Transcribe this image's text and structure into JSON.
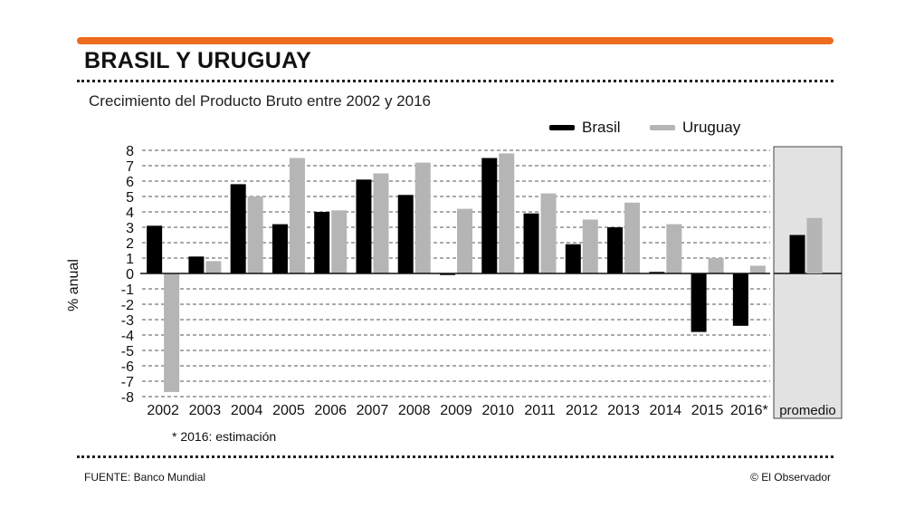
{
  "header": {
    "title": "BRASIL Y URUGUAY",
    "subtitle": "Crecimiento del Producto Bruto entre 2002 y 2016"
  },
  "legend": {
    "brasil": "Brasil",
    "uruguay": "Uruguay"
  },
  "footer": {
    "note": "*  2016: estimación",
    "source": "FUENTE:  Banco Mundial",
    "copyright": "© El Observador"
  },
  "colors": {
    "accent": "#ee6a1f",
    "brasil": "#000000",
    "uruguay": "#b5b5b5",
    "panel": "#e2e2e2"
  },
  "chart_data": {
    "type": "bar",
    "ylabel": "% anual",
    "ylim": [
      -8,
      8
    ],
    "yticks": [
      8,
      7,
      6,
      5,
      4,
      3,
      2,
      1,
      0,
      -1,
      -2,
      -3,
      -4,
      -5,
      -6,
      -7,
      -8
    ],
    "categories": [
      "2002",
      "2003",
      "2004",
      "2005",
      "2006",
      "2007",
      "2008",
      "2009",
      "2010",
      "2011",
      "2012",
      "2013",
      "2014",
      "2015",
      "2016*"
    ],
    "series": [
      {
        "name": "Brasil",
        "values": [
          3.1,
          1.1,
          5.8,
          3.2,
          4.0,
          6.1,
          5.1,
          -0.1,
          7.5,
          3.9,
          1.9,
          3.0,
          0.1,
          -3.8,
          -3.4
        ]
      },
      {
        "name": "Uruguay",
        "values": [
          -7.7,
          0.8,
          5.0,
          7.5,
          4.1,
          6.5,
          7.2,
          4.2,
          7.8,
          5.2,
          3.5,
          4.6,
          3.2,
          1.0,
          0.5
        ]
      }
    ],
    "average": {
      "label": "promedio",
      "values": [
        2.5,
        3.6
      ]
    }
  }
}
